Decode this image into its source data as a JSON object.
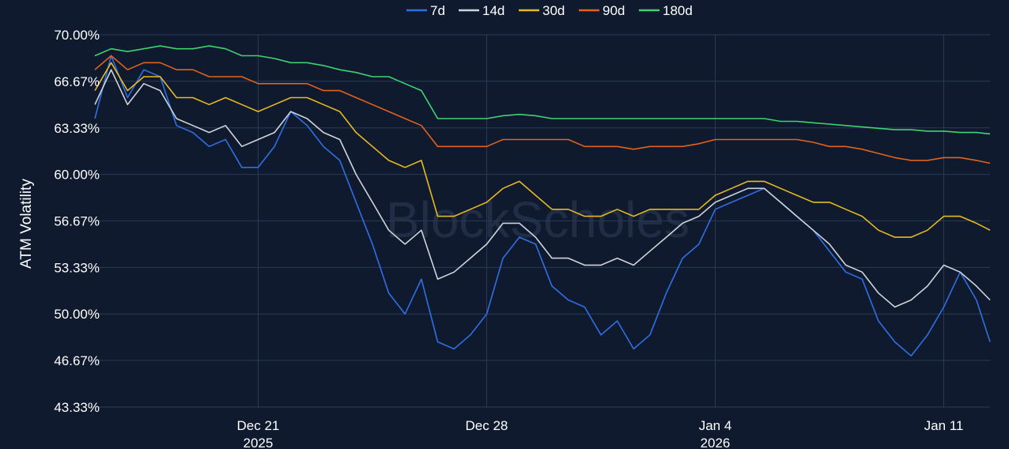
{
  "chart_data": {
    "type": "line",
    "ylabel": "ATM Volatility",
    "watermark": "BlockScholes",
    "legend_position": "top-center",
    "grid": true,
    "ylim": [
      43.33,
      70.0
    ],
    "y_ticks": [
      {
        "value": 70.0,
        "label": "70.00%"
      },
      {
        "value": 66.67,
        "label": "66.67%"
      },
      {
        "value": 63.33,
        "label": "63.33%"
      },
      {
        "value": 60.0,
        "label": "60.00%"
      },
      {
        "value": 56.67,
        "label": "56.67%"
      },
      {
        "value": 53.33,
        "label": "53.33%"
      },
      {
        "value": 50.0,
        "label": "50.00%"
      },
      {
        "value": 46.67,
        "label": "46.67%"
      },
      {
        "value": 43.33,
        "label": "43.33%"
      }
    ],
    "xlim": [
      "2025-12-16",
      "2026-01-12T10:00"
    ],
    "x_ticks": [
      {
        "value": "2025-12-21",
        "label": "Dec 21",
        "sublabel": "2025"
      },
      {
        "value": "2025-12-28",
        "label": "Dec 28",
        "sublabel": ""
      },
      {
        "value": "2026-01-04",
        "label": "Jan 4",
        "sublabel": "2026"
      },
      {
        "value": "2026-01-11",
        "label": "Jan 11",
        "sublabel": ""
      }
    ],
    "x": [
      "2025-12-16",
      "2025-12-16T12:00",
      "2025-12-17",
      "2025-12-17T12:00",
      "2025-12-18",
      "2025-12-18T12:00",
      "2025-12-19",
      "2025-12-19T12:00",
      "2025-12-20",
      "2025-12-20T12:00",
      "2025-12-21",
      "2025-12-21T12:00",
      "2025-12-22",
      "2025-12-22T12:00",
      "2025-12-23",
      "2025-12-23T12:00",
      "2025-12-24",
      "2025-12-24T12:00",
      "2025-12-25",
      "2025-12-25T12:00",
      "2025-12-26",
      "2025-12-26T12:00",
      "2025-12-27",
      "2025-12-27T12:00",
      "2025-12-28",
      "2025-12-28T12:00",
      "2025-12-29",
      "2025-12-29T12:00",
      "2025-12-30",
      "2025-12-30T12:00",
      "2025-12-31",
      "2025-12-31T12:00",
      "2026-01-01",
      "2026-01-01T12:00",
      "2026-01-02",
      "2026-01-02T12:00",
      "2026-01-03",
      "2026-01-03T12:00",
      "2026-01-04",
      "2026-01-04T12:00",
      "2026-01-05",
      "2026-01-05T12:00",
      "2026-01-06",
      "2026-01-06T12:00",
      "2026-01-07",
      "2026-01-07T12:00",
      "2026-01-08",
      "2026-01-08T12:00",
      "2026-01-09",
      "2026-01-09T12:00",
      "2026-01-10",
      "2026-01-10T12:00",
      "2026-01-11",
      "2026-01-11T12:00",
      "2026-01-12",
      "2026-01-12T10:00"
    ],
    "series": [
      {
        "name": "7d",
        "color": "#2f6fe4",
        "values": [
          64.0,
          68.5,
          65.5,
          67.5,
          67.0,
          63.5,
          63.0,
          62.0,
          62.5,
          60.5,
          60.5,
          62.0,
          64.5,
          63.5,
          62.0,
          61.0,
          58.0,
          55.0,
          51.5,
          50.0,
          52.5,
          48.0,
          47.5,
          48.5,
          50.0,
          54.0,
          55.5,
          55.0,
          52.0,
          51.0,
          50.5,
          48.5,
          49.5,
          47.5,
          48.5,
          51.5,
          54.0,
          55.0,
          57.5,
          58.0,
          58.5,
          59.0,
          58.0,
          57.0,
          56.0,
          54.5,
          53.0,
          52.5,
          49.5,
          48.0,
          47.0,
          48.5,
          50.5,
          53.0,
          51.0,
          48.0
        ]
      },
      {
        "name": "14d",
        "color": "#cfd3da",
        "values": [
          65.0,
          67.5,
          65.0,
          66.5,
          66.0,
          64.0,
          63.5,
          63.0,
          63.5,
          62.0,
          62.5,
          63.0,
          64.5,
          64.0,
          63.0,
          62.5,
          60.0,
          58.0,
          56.0,
          55.0,
          56.0,
          52.5,
          53.0,
          54.0,
          55.0,
          56.5,
          56.5,
          55.5,
          54.0,
          54.0,
          53.5,
          53.5,
          54.0,
          53.5,
          54.5,
          55.5,
          56.5,
          57.0,
          58.0,
          58.5,
          59.0,
          59.0,
          58.0,
          57.0,
          56.0,
          55.0,
          53.5,
          53.0,
          51.5,
          50.5,
          51.0,
          52.0,
          53.5,
          53.0,
          52.0,
          51.0
        ]
      },
      {
        "name": "30d",
        "color": "#e5b922",
        "values": [
          66.0,
          68.0,
          66.0,
          67.0,
          67.0,
          65.5,
          65.5,
          65.0,
          65.5,
          65.0,
          64.5,
          65.0,
          65.5,
          65.5,
          65.0,
          64.5,
          63.0,
          62.0,
          61.0,
          60.5,
          61.0,
          57.0,
          57.0,
          57.5,
          58.0,
          59.0,
          59.5,
          58.5,
          57.5,
          57.5,
          57.0,
          57.0,
          57.5,
          57.0,
          57.5,
          57.5,
          57.5,
          57.5,
          58.5,
          59.0,
          59.5,
          59.5,
          59.0,
          58.5,
          58.0,
          58.0,
          57.5,
          57.0,
          56.0,
          55.5,
          55.5,
          56.0,
          57.0,
          57.0,
          56.5,
          56.0
        ]
      },
      {
        "name": "90d",
        "color": "#e2621c",
        "values": [
          67.5,
          68.5,
          67.5,
          68.0,
          68.0,
          67.5,
          67.5,
          67.0,
          67.0,
          67.0,
          66.5,
          66.5,
          66.5,
          66.5,
          66.0,
          66.0,
          65.5,
          65.0,
          64.5,
          64.0,
          63.5,
          62.0,
          62.0,
          62.0,
          62.0,
          62.5,
          62.5,
          62.5,
          62.5,
          62.5,
          62.0,
          62.0,
          62.0,
          61.8,
          62.0,
          62.0,
          62.0,
          62.2,
          62.5,
          62.5,
          62.5,
          62.5,
          62.5,
          62.5,
          62.3,
          62.0,
          62.0,
          61.8,
          61.5,
          61.2,
          61.0,
          61.0,
          61.2,
          61.2,
          61.0,
          60.8
        ]
      },
      {
        "name": "180d",
        "color": "#3ed36f",
        "values": [
          68.5,
          69.0,
          68.8,
          69.0,
          69.2,
          69.0,
          69.0,
          69.2,
          69.0,
          68.5,
          68.5,
          68.3,
          68.0,
          68.0,
          67.8,
          67.5,
          67.3,
          67.0,
          67.0,
          66.5,
          66.0,
          64.0,
          64.0,
          64.0,
          64.0,
          64.2,
          64.3,
          64.2,
          64.0,
          64.0,
          64.0,
          64.0,
          64.0,
          64.0,
          64.0,
          64.0,
          64.0,
          64.0,
          64.0,
          64.0,
          64.0,
          64.0,
          63.8,
          63.8,
          63.7,
          63.6,
          63.5,
          63.4,
          63.3,
          63.2,
          63.2,
          63.1,
          63.1,
          63.0,
          63.0,
          62.9
        ]
      }
    ]
  }
}
